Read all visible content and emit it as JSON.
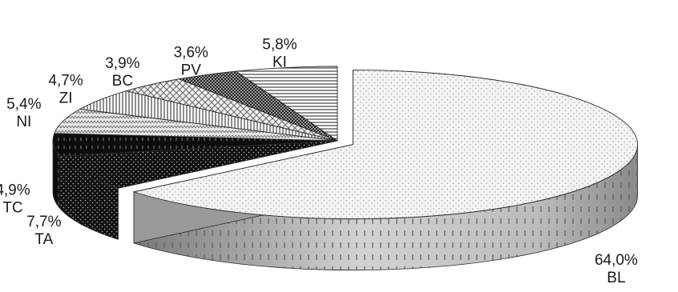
{
  "chart_data": {
    "type": "pie",
    "style": "3d-exploded-pie",
    "legend": "none",
    "slices": [
      {
        "code": "BL",
        "value": 64.0,
        "value_label": "64,0%",
        "pattern": "dots-light"
      },
      {
        "code": "TA",
        "value": 7.7,
        "value_label": "7,7%",
        "pattern": "dark-dots"
      },
      {
        "code": "TC",
        "value": 4.9,
        "value_label": "4,9%",
        "pattern": "black-dashes"
      },
      {
        "code": "NI",
        "value": 5.4,
        "value_label": "5,4%",
        "pattern": "zigzag"
      },
      {
        "code": "ZI",
        "value": 4.7,
        "value_label": "4,7%",
        "pattern": "vertical-lines"
      },
      {
        "code": "BC",
        "value": 3.9,
        "value_label": "3,9%",
        "pattern": "diamond-grid"
      },
      {
        "code": "PV",
        "value": 3.6,
        "value_label": "3,6%",
        "pattern": "dark-checker"
      },
      {
        "code": "KI",
        "value": 5.8,
        "value_label": "5,8%",
        "pattern": "horizontal-lines"
      }
    ]
  }
}
